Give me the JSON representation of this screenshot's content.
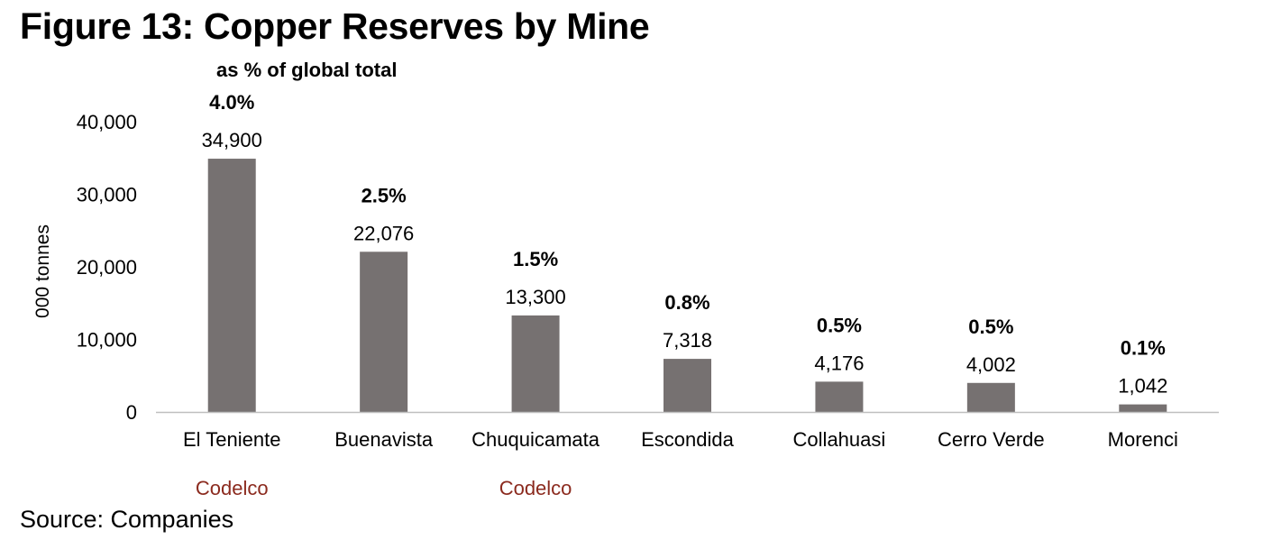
{
  "figure": {
    "title": "Figure 13: Copper Reserves by Mine",
    "source": "Source: Companies"
  },
  "chart_data": {
    "type": "bar",
    "title": "Figure 13: Copper Reserves by Mine",
    "annotation": "as % of global total",
    "ylabel": "000 tonnes",
    "xlabel": "",
    "ylim": [
      0,
      40000
    ],
    "yticks": [
      0,
      10000,
      20000,
      30000,
      40000
    ],
    "ytick_labels": [
      "0",
      "10,000",
      "20,000",
      "30,000",
      "40,000"
    ],
    "grid": false,
    "legend": "none",
    "bar_color": "#767171",
    "owner_color": "#8B2A1E",
    "categories": [
      "El Teniente",
      "Buenavista",
      "Chuquicamata",
      "Escondida",
      "Collahuasi",
      "Cerro Verde",
      "Morenci"
    ],
    "values": [
      34900,
      22076,
      13300,
      7318,
      4176,
      4002,
      1042
    ],
    "value_labels": [
      "34,900",
      "22,076",
      "13,300",
      "7,318",
      "4,176",
      "4,002",
      "1,042"
    ],
    "share_of_global": [
      "4.0%",
      "2.5%",
      "1.5%",
      "0.8%",
      "0.5%",
      "0.5%",
      "0.1%"
    ],
    "owners": [
      "Codelco",
      "",
      "Codelco",
      "",
      "",
      "",
      ""
    ]
  }
}
